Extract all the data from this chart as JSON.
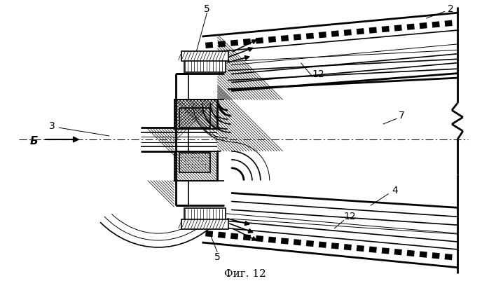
{
  "bg_color": "#ffffff",
  "line_color": "#000000",
  "caption": "Фиг. 12",
  "label_B": "Б",
  "labels": [
    "2",
    "3",
    "4",
    "5",
    "5",
    "7",
    "12",
    "12"
  ],
  "lw_thin": 0.7,
  "lw_med": 1.2,
  "lw_thick": 2.0,
  "lw_vlthick": 3.0
}
